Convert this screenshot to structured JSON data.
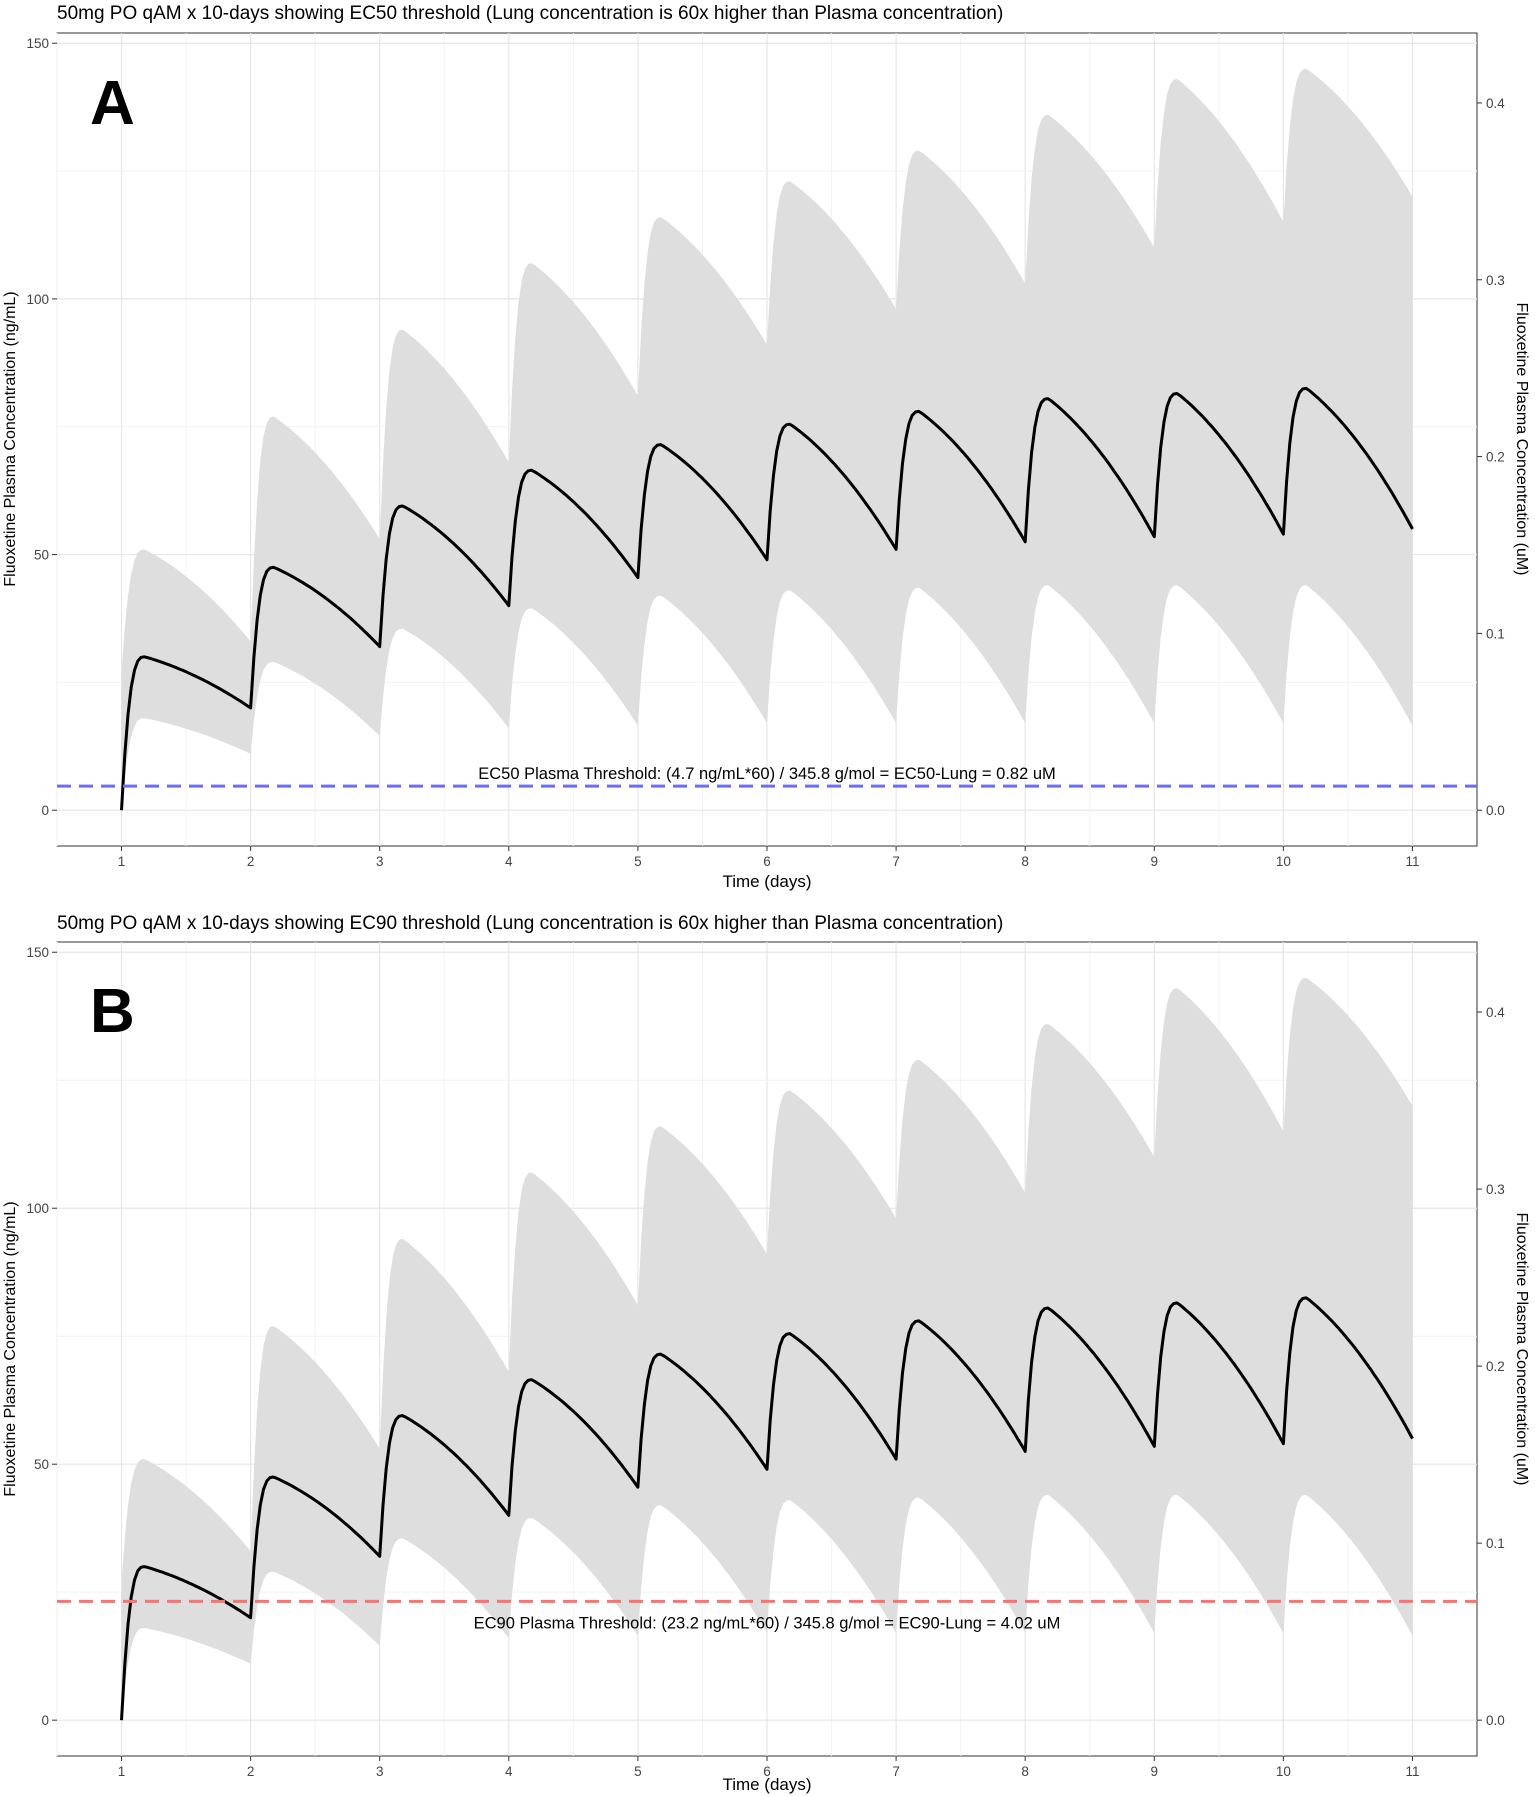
{
  "chart_data": [
    {
      "panel_label": "A",
      "type": "line",
      "title": "50mg PO qAM x 10-days showing EC50 threshold (Lung concentration is 60x higher than Plasma concentration)",
      "xlabel": "Time (days)",
      "ylabel": "Fluoxetine Plasma Concentration (ng/mL)",
      "ylabel_right": "Fluoxetine Plasma Concentration (uM)",
      "xlim": [
        0.5,
        11.5
      ],
      "ylim": [
        -7,
        152
      ],
      "xticks": [
        1,
        2,
        3,
        4,
        5,
        6,
        7,
        8,
        9,
        10,
        11
      ],
      "yticks": [
        0,
        50,
        100,
        150
      ],
      "yticks_right": [
        "0.0",
        "0.1",
        "0.2",
        "0.3",
        "0.4"
      ],
      "grid": true,
      "series": [
        {
          "kind": "median-line",
          "x": [
            1.0,
            1.02,
            1.05,
            1.08,
            1.12,
            1.18,
            1.25,
            1.35,
            1.5,
            1.7,
            2.0
          ],
          "x_repeat_period": 1,
          "doses": 10,
          "dose_peak": [
            30,
            47.5,
            59.5,
            66.5,
            71.5,
            75.5,
            78,
            80.5,
            81.5,
            82.5
          ],
          "dose_trough": [
            20,
            32,
            40,
            45.5,
            49,
            51,
            52.5,
            53.5,
            54,
            55
          ],
          "first_dose_start": 0,
          "color": "#000000"
        },
        {
          "kind": "ribbon-upper",
          "dose_peak": [
            51,
            77,
            94,
            107,
            116,
            123,
            129,
            136,
            143,
            145
          ],
          "dose_trough": [
            33,
            53,
            68,
            81,
            91,
            98,
            103,
            110,
            115,
            120
          ],
          "first_dose_start": 27,
          "color": "#dedede"
        },
        {
          "kind": "ribbon-lower",
          "dose_peak": [
            18,
            29,
            35.5,
            39.5,
            42,
            43,
            43.5,
            44,
            44,
            44
          ],
          "dose_trough": [
            11,
            14.5,
            16,
            16.5,
            17,
            17,
            17,
            17,
            17,
            16.5
          ],
          "first_dose_start": 0,
          "color": "#dedede"
        }
      ],
      "threshold": {
        "value": 4.7,
        "color": "#6b6bff",
        "label": "EC50 Plasma Threshold: (4.7 ng/mL*60) / 345.8 g/mol = EC50-Lung = 0.82 uM",
        "label_position": "above"
      }
    },
    {
      "panel_label": "B",
      "type": "line",
      "title": "50mg PO qAM x 10-days showing EC90 threshold (Lung concentration is 60x higher than Plasma concentration)",
      "xlabel": "Time (days)",
      "ylabel": "Fluoxetine Plasma Concentration (ng/mL)",
      "ylabel_right": "Fluoxetine Plasma Concentration (uM)",
      "xlim": [
        0.5,
        11.5
      ],
      "ylim": [
        -7,
        152
      ],
      "xticks": [
        1,
        2,
        3,
        4,
        5,
        6,
        7,
        8,
        9,
        10,
        11
      ],
      "yticks": [
        0,
        50,
        100,
        150
      ],
      "yticks_right": [
        "0.0",
        "0.1",
        "0.2",
        "0.3",
        "0.4"
      ],
      "grid": true,
      "series": [
        {
          "kind": "median-line",
          "doses": 10,
          "dose_peak": [
            30,
            47.5,
            59.5,
            66.5,
            71.5,
            75.5,
            78,
            80.5,
            81.5,
            82.5
          ],
          "dose_trough": [
            20,
            32,
            40,
            45.5,
            49,
            51,
            52.5,
            53.5,
            54,
            55
          ],
          "first_dose_start": 0,
          "color": "#000000"
        },
        {
          "kind": "ribbon-upper",
          "dose_peak": [
            51,
            77,
            94,
            107,
            116,
            123,
            129,
            136,
            143,
            145
          ],
          "dose_trough": [
            33,
            53,
            68,
            81,
            91,
            98,
            103,
            110,
            115,
            120
          ],
          "first_dose_start": 27,
          "color": "#dedede"
        },
        {
          "kind": "ribbon-lower",
          "dose_peak": [
            18,
            29,
            35.5,
            39.5,
            42,
            43,
            43.5,
            44,
            44,
            44
          ],
          "dose_trough": [
            11,
            14.5,
            16,
            16.5,
            17,
            17,
            17,
            17,
            17,
            16.5
          ],
          "first_dose_start": 0,
          "color": "#dedede"
        }
      ],
      "threshold": {
        "value": 23.2,
        "color": "#ff7070",
        "label": "EC90 Plasma Threshold: (23.2 ng/mL*60) / 345.8 g/mol = EC90-Lung = 4.02 uM",
        "label_position": "below"
      }
    }
  ]
}
